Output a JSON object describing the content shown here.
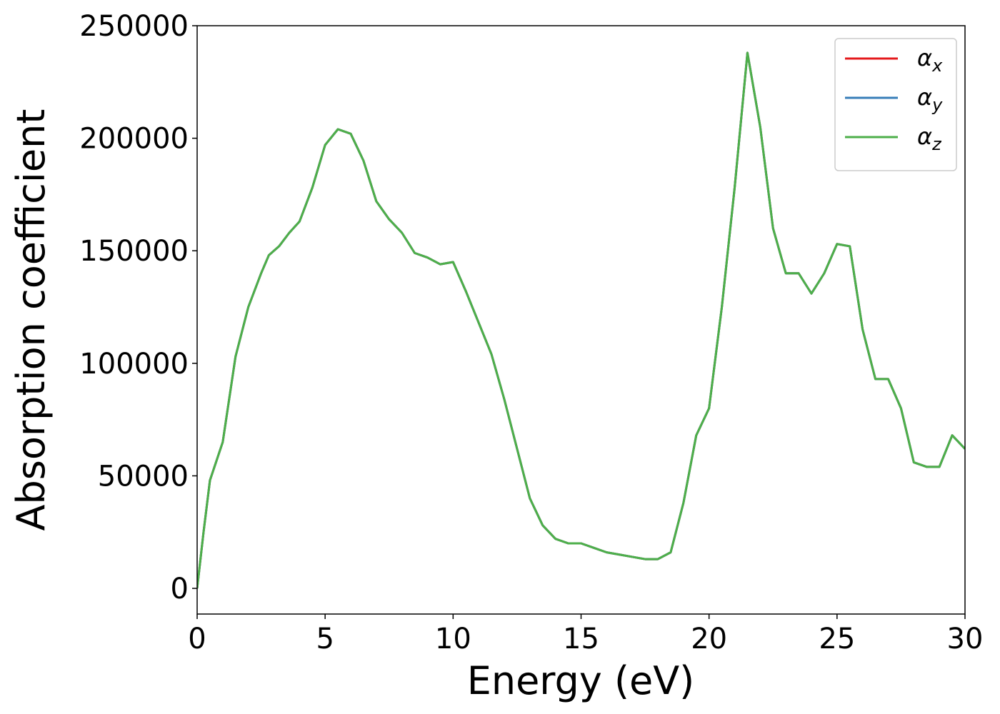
{
  "chart_data": {
    "type": "line",
    "xlabel": "Energy (eV)",
    "ylabel": "Absorption coefficient",
    "x": [
      0,
      0.25,
      0.5,
      1,
      1.5,
      2,
      2.5,
      2.8,
      3.2,
      3.6,
      4,
      4.5,
      5,
      5.5,
      6,
      6.5,
      7,
      7.5,
      8,
      8.5,
      9,
      9.5,
      10,
      10.5,
      11,
      11.5,
      12,
      12.5,
      13,
      13.5,
      14,
      14.5,
      15,
      15.5,
      16,
      16.5,
      17,
      17.5,
      18,
      18.5,
      19,
      19.5,
      20,
      20.5,
      21,
      21.5,
      22,
      22.5,
      23,
      23.5,
      24,
      24.5,
      25,
      25.5,
      26,
      26.5,
      27,
      27.5,
      28,
      28.5,
      29,
      29.5,
      30
    ],
    "series": [
      {
        "name": "αx",
        "color": "#e41a1c",
        "values": [
          0,
          25000,
          48000,
          65000,
          103000,
          125000,
          140000,
          148000,
          152000,
          158000,
          163000,
          178000,
          197000,
          204000,
          202000,
          190000,
          172000,
          164000,
          158000,
          149000,
          147000,
          144000,
          145000,
          132000,
          118000,
          104000,
          84000,
          62000,
          40000,
          28000,
          22000,
          20000,
          20000,
          18000,
          16000,
          15000,
          14000,
          13000,
          13000,
          16000,
          38000,
          68000,
          80000,
          125000,
          178000,
          238000,
          205000,
          160000,
          140000,
          140000,
          131000,
          140000,
          153000,
          152000,
          115000,
          93000,
          93000,
          80000,
          56000,
          54000,
          54000,
          68000,
          62000
        ]
      },
      {
        "name": "αy",
        "color": "#377eb8",
        "values": [
          0,
          25000,
          48000,
          65000,
          103000,
          125000,
          140000,
          148000,
          152000,
          158000,
          163000,
          178000,
          197000,
          204000,
          202000,
          190000,
          172000,
          164000,
          158000,
          149000,
          147000,
          144000,
          145000,
          132000,
          118000,
          104000,
          84000,
          62000,
          40000,
          28000,
          22000,
          20000,
          20000,
          18000,
          16000,
          15000,
          14000,
          13000,
          13000,
          16000,
          38000,
          68000,
          80000,
          125000,
          178000,
          238000,
          205000,
          160000,
          140000,
          140000,
          131000,
          140000,
          153000,
          152000,
          115000,
          93000,
          93000,
          80000,
          56000,
          54000,
          54000,
          68000,
          62000
        ]
      },
      {
        "name": "αz",
        "color": "#4daf4a",
        "values": [
          0,
          25000,
          48000,
          65000,
          103000,
          125000,
          140000,
          148000,
          152000,
          158000,
          163000,
          178000,
          197000,
          204000,
          202000,
          190000,
          172000,
          164000,
          158000,
          149000,
          147000,
          144000,
          145000,
          132000,
          118000,
          104000,
          84000,
          62000,
          40000,
          28000,
          22000,
          20000,
          20000,
          18000,
          16000,
          15000,
          14000,
          13000,
          13000,
          16000,
          38000,
          68000,
          80000,
          125000,
          178000,
          238000,
          205000,
          160000,
          140000,
          140000,
          131000,
          140000,
          153000,
          152000,
          115000,
          93000,
          93000,
          80000,
          56000,
          54000,
          54000,
          68000,
          62000
        ]
      }
    ],
    "xlim": [
      0,
      30
    ],
    "xticks": [
      0,
      5,
      10,
      15,
      20,
      25,
      30
    ],
    "ylim": [
      -11400,
      250000
    ],
    "yticks": [
      0,
      50000,
      100000,
      150000,
      200000,
      250000
    ],
    "grid": false,
    "legend": "upper right"
  }
}
